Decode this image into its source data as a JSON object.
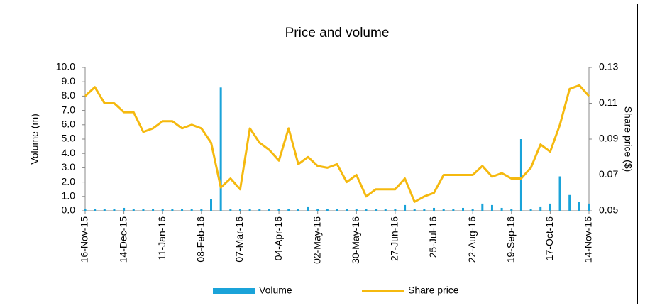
{
  "chart_data": {
    "type": "bar-line",
    "title": "Price and volume",
    "y_label": "Volume (m)",
    "y2_label": "Share price ($)",
    "categories": [
      "16-Nov-15",
      null,
      null,
      null,
      "14-Dec-15",
      null,
      null,
      null,
      "11-Jan-16",
      null,
      null,
      null,
      "08-Feb-16",
      null,
      null,
      null,
      "07-Mar-16",
      null,
      null,
      null,
      "04-Apr-16",
      null,
      null,
      null,
      "02-May-16",
      null,
      null,
      null,
      "30-May-16",
      null,
      null,
      null,
      "27-Jun-16",
      null,
      null,
      null,
      "25-Jul-16",
      null,
      null,
      null,
      "22-Aug-16",
      null,
      null,
      null,
      "19-Sep-16",
      null,
      null,
      null,
      "17-Oct-16",
      null,
      null,
      null,
      "14-Nov-16"
    ],
    "series": [
      {
        "name": "Volume",
        "type": "bar",
        "color": "#1aa3d9",
        "values": [
          0.1,
          0.1,
          0.1,
          0.1,
          0.2,
          0.1,
          0.1,
          0.1,
          0.1,
          0.1,
          0.1,
          0.1,
          0.1,
          0.8,
          8.6,
          0.1,
          0.1,
          0.1,
          0.1,
          0.1,
          0.1,
          0.1,
          0.1,
          0.3,
          0.1,
          0.1,
          0.1,
          0.1,
          0.1,
          0.1,
          0.1,
          0.1,
          0.1,
          0.4,
          0.1,
          0.1,
          0.2,
          0.1,
          0.1,
          0.2,
          0.1,
          0.5,
          0.4,
          0.2,
          0.1,
          5.0,
          0.1,
          0.3,
          0.5,
          2.4,
          1.1,
          0.6,
          0.5
        ]
      },
      {
        "name": "Share price",
        "type": "line",
        "axis": "y2",
        "color": "#f5b90f",
        "values": [
          0.114,
          0.119,
          0.11,
          0.11,
          0.105,
          0.105,
          0.094,
          0.096,
          0.1,
          0.1,
          0.096,
          0.098,
          0.096,
          0.088,
          0.063,
          0.068,
          0.062,
          0.096,
          0.088,
          0.084,
          0.078,
          0.096,
          0.076,
          0.08,
          0.075,
          0.074,
          0.076,
          0.066,
          0.07,
          0.058,
          0.062,
          0.062,
          0.062,
          0.068,
          0.055,
          0.058,
          0.06,
          0.07,
          0.07,
          0.07,
          0.07,
          0.075,
          0.069,
          0.071,
          0.068,
          0.068,
          0.074,
          0.087,
          0.083,
          0.098,
          0.118,
          0.12,
          0.114
        ]
      }
    ],
    "ylim": [
      0,
      10
    ],
    "yticks": [
      {
        "value": 0,
        "label": "0.0"
      },
      {
        "value": 1,
        "label": "1.0"
      },
      {
        "value": 2,
        "label": "2.0"
      },
      {
        "value": 3,
        "label": "3.0"
      },
      {
        "value": 4,
        "label": "4.0"
      },
      {
        "value": 5,
        "label": "5.0"
      },
      {
        "value": 6,
        "label": "6.0"
      },
      {
        "value": 7,
        "label": "7.0"
      },
      {
        "value": 8,
        "label": "8.0"
      },
      {
        "value": 9,
        "label": "9.0"
      },
      {
        "value": 10,
        "label": "10.0"
      }
    ],
    "y2lim": [
      0.05,
      0.13
    ],
    "y2ticks": [
      0.05,
      0.07,
      0.09,
      0.11,
      0.13
    ],
    "legend": "bottom",
    "grid": false
  }
}
